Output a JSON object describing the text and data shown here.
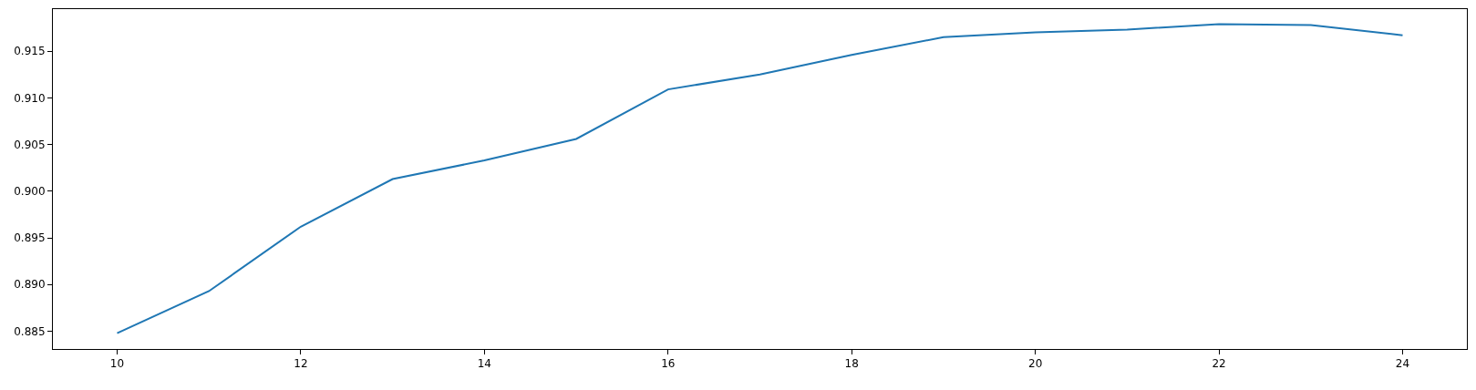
{
  "chart_data": {
    "type": "line",
    "x": [
      10,
      11,
      12,
      13,
      14,
      15,
      16,
      17,
      18,
      19,
      20,
      21,
      22,
      23,
      24
    ],
    "series": [
      {
        "color": "#1f77b4",
        "values": [
          0.8848,
          0.8893,
          0.8962,
          0.9013,
          0.9033,
          0.9056,
          0.9109,
          0.9125,
          0.9146,
          0.9165,
          0.917,
          0.9173,
          0.9179,
          0.9178,
          0.9167
        ]
      }
    ],
    "xlim": [
      9.3,
      24.7
    ],
    "xticks": [
      10,
      12,
      14,
      16,
      18,
      20,
      22,
      24
    ],
    "ylim": [
      0.8831,
      0.9195
    ],
    "yticks": [
      {
        "value": 0.885,
        "label": "0.885"
      },
      {
        "value": 0.89,
        "label": "0.890"
      },
      {
        "value": 0.895,
        "label": "0.895"
      },
      {
        "value": 0.9,
        "label": "0.900"
      },
      {
        "value": 0.905,
        "label": "0.905"
      },
      {
        "value": 0.91,
        "label": "0.910"
      },
      {
        "value": 0.915,
        "label": "0.915"
      }
    ]
  }
}
